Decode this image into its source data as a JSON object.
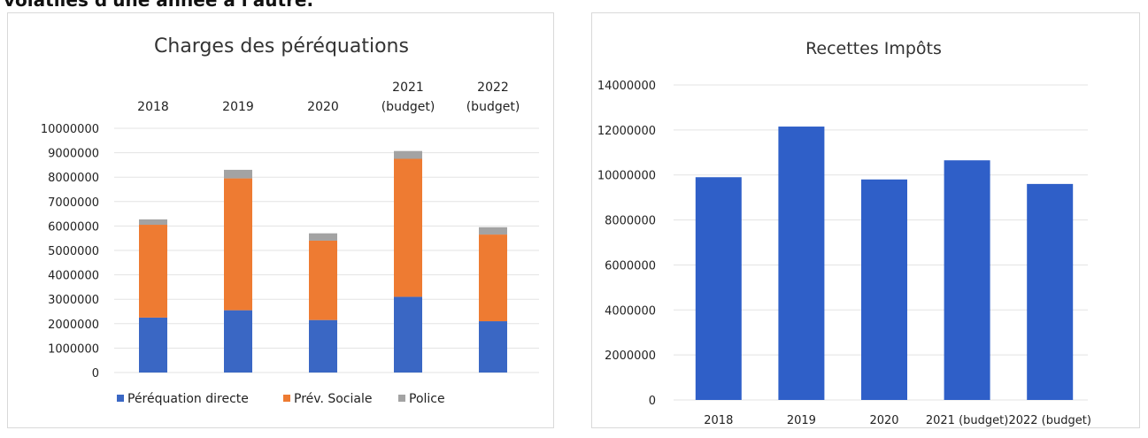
{
  "intro_text": "volatiles d'une année à l'autre.",
  "colors": {
    "perequation": "#3a67c4",
    "prev": "#ee7b32",
    "police": "#a3a3a3",
    "recettes": "#2f5fc8"
  },
  "chart_data": [
    {
      "type": "bar",
      "stacked": true,
      "title": "Charges des péréquations",
      "categories": [
        [
          "2018"
        ],
        [
          "2019"
        ],
        [
          "2020"
        ],
        [
          "2021",
          "(budget)"
        ],
        [
          "2022",
          "(budget)"
        ]
      ],
      "category_axis_position": "top",
      "series": [
        {
          "name": "Péréquation directe",
          "values": [
            2250000,
            2550000,
            2150000,
            3100000,
            2100000
          ]
        },
        {
          "name": "Prév. Sociale",
          "values": [
            3800000,
            5400000,
            3250000,
            5650000,
            3550000
          ]
        },
        {
          "name": "Police",
          "values": [
            220000,
            350000,
            300000,
            320000,
            300000
          ]
        }
      ],
      "ylim": [
        0,
        10000000
      ],
      "yticks": [
        "0",
        "1000000",
        "2000000",
        "3000000",
        "4000000",
        "5000000",
        "6000000",
        "7000000",
        "8000000",
        "9000000",
        "10000000"
      ],
      "grid": true,
      "legend": "bottom"
    },
    {
      "type": "bar",
      "title": "Recettes Impôts",
      "categories": [
        "2018",
        "2019",
        "2020",
        "2021 (budget)",
        "2022 (budget)"
      ],
      "values": [
        9900000,
        12150000,
        9800000,
        10650000,
        9600000
      ],
      "ylim": [
        0,
        14000000
      ],
      "yticks": [
        "0",
        "2000000",
        "4000000",
        "6000000",
        "8000000",
        "10000000",
        "12000000",
        "14000000"
      ],
      "grid": true,
      "legend": "none"
    }
  ]
}
